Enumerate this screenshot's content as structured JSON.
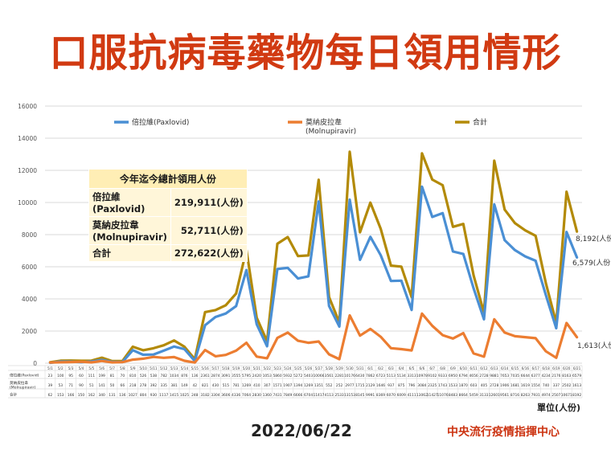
{
  "title": "口服抗病毒藥物每日領用情形",
  "date": "2022/06/22",
  "source": "中央流行疫情指揮中心",
  "unit_label": "單位(人份)",
  "summary": {
    "header": "今年迄今總計領用人份",
    "rows": [
      {
        "label": "倍拉維\n(Paxlovid)",
        "value": "219,911(人份)"
      },
      {
        "label": "莫納皮拉韋\n(Molnupiravir)",
        "value": "52,711(人份)"
      },
      {
        "label": "合計",
        "value": "272,622(人份)"
      }
    ]
  },
  "colors": {
    "paxlovid": "#4a8fd4",
    "molnupiravir": "#ec7d31",
    "total": "#b38a07",
    "title": "#d13a12"
  },
  "chart_data": {
    "type": "line",
    "ylim": [
      0,
      16000
    ],
    "yticks": [
      0,
      2000,
      4000,
      6000,
      8000,
      10000,
      12000,
      14000,
      16000
    ],
    "categories": [
      "5/1",
      "5/2",
      "5/3",
      "5/4",
      "5/5",
      "5/6",
      "5/7",
      "5/8",
      "5/9",
      "5/10",
      "5/11",
      "5/12",
      "5/13",
      "5/14",
      "5/15",
      "5/16",
      "5/17",
      "5/18",
      "5/19",
      "5/20",
      "5/21",
      "5/22",
      "5/23",
      "5/24",
      "5/25",
      "5/26",
      "5/27",
      "5/28",
      "5/29",
      "5/30",
      "5/31",
      "6/1",
      "6/2",
      "6/3",
      "6/4",
      "6/5",
      "6/6",
      "6/7",
      "6/8",
      "6/9",
      "6/10",
      "6/11",
      "6/12",
      "6/13",
      "6/14",
      "6/15",
      "6/16",
      "6/17",
      "6/18",
      "6/19",
      "6/20",
      "6/21"
    ],
    "series": [
      {
        "name": "倍拉維(Paxlovid)",
        "key": "paxlovid",
        "row_label": "倍拉維(Paxlovid)",
        "values": [
          23,
          100,
          95,
          60,
          111,
          199,
          81,
          70,
          810,
          526,
          538,
          782,
          1034,
          876,
          136,
          2361,
          2874,
          3091,
          3555,
          5795,
          2420,
          1053,
          5860,
          5932,
          5272,
          5403,
          10066,
          3561,
          2281,
          10176,
          6430,
          7862,
          6723,
          5113,
          5134,
          3313,
          10978,
          9102,
          9333,
          6950,
          6794,
          4656,
          2728,
          9881,
          7653,
          7035,
          6644,
          6377,
          4234,
          2176,
          8163,
          6579
        ]
      },
      {
        "name": "莫納皮拉韋\n(Molnupiravir)",
        "key": "molnupiravir",
        "row_label": "莫納皮拉韋\n(Molnupiravir)",
        "values": [
          39,
          53,
          71,
          90,
          51,
          141,
          50,
          66,
          218,
          278,
          392,
          335,
          381,
          149,
          42,
          821,
          430,
          515,
          781,
          1269,
          410,
          307,
          1571,
          1907,
          1394,
          1269,
          1351,
          552,
          252,
          2977,
          1715,
          2129,
          1646,
          937,
          875,
          796,
          3084,
          2325,
          1743,
          1533,
          1870,
          603,
          405,
          2728,
          1906,
          1681,
          1619,
          1554,
          740,
          337,
          2502,
          1613
        ]
      },
      {
        "name": "合計",
        "key": "total",
        "row_label": "合計",
        "values": [
          62,
          153,
          166,
          150,
          162,
          340,
          131,
          136,
          1027,
          804,
          930,
          1117,
          1415,
          1025,
          248,
          3182,
          3304,
          3606,
          4336,
          7064,
          2830,
          1360,
          7431,
          7849,
          6666,
          6704,
          11417,
          4113,
          2533,
          13153,
          8145,
          9991,
          8369,
          6070,
          6009,
          4111,
          13062,
          11427,
          11076,
          8483,
          8664,
          5459,
          3133,
          12601,
          9561,
          8716,
          8263,
          7931,
          4974,
          2507,
          10671,
          8192
        ]
      }
    ],
    "end_labels": {
      "total": "8,192(人份)",
      "paxlovid": "6,579(人份)",
      "molnupiravir": "1,613(人份)"
    }
  }
}
